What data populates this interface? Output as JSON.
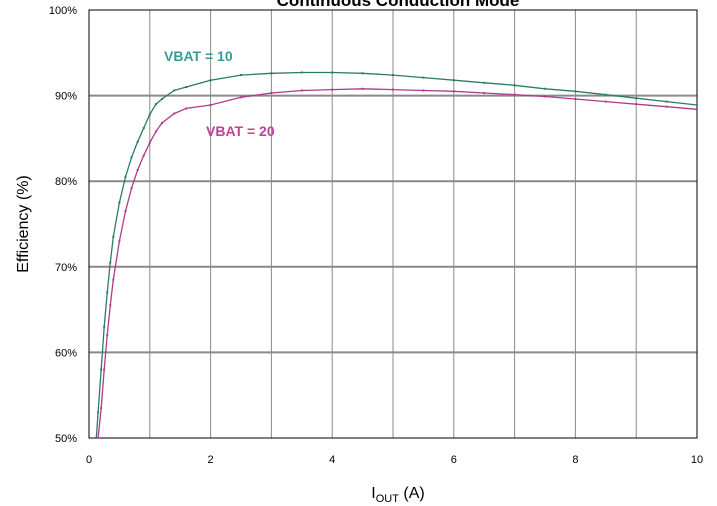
{
  "chart_data": {
    "type": "line",
    "title": "Continuous Conduction Mode",
    "xlabel_main": "I",
    "xlabel_sub": "OUT",
    "xlabel_unit": " (A)",
    "ylabel": "Efficiency (%)",
    "xlim": [
      0,
      10
    ],
    "ylim": [
      50,
      100
    ],
    "x_ticks": [
      0,
      2,
      4,
      6,
      8,
      10
    ],
    "x_tick_labels": [
      "0",
      "2",
      "4",
      "6",
      "8",
      "10"
    ],
    "y_ticks": [
      50,
      60,
      70,
      80,
      90,
      100
    ],
    "y_tick_labels": [
      "50%",
      "60%",
      "70%",
      "80%",
      "90%",
      "100%"
    ],
    "grid": true,
    "legend": "inline labels",
    "series": [
      {
        "name": "VBAT = 10",
        "color": "#2d7a6a",
        "label_color": "#3a9a9a",
        "x": [
          0.12,
          0.15,
          0.2,
          0.25,
          0.3,
          0.35,
          0.4,
          0.5,
          0.6,
          0.7,
          0.8,
          0.9,
          1.0,
          1.1,
          1.2,
          1.4,
          1.6,
          2.0,
          2.5,
          3.0,
          3.5,
          4.0,
          4.5,
          5.0,
          5.5,
          6.0,
          6.5,
          7.0,
          7.5,
          8.0,
          8.5,
          9.0,
          9.5,
          10.0
        ],
        "y": [
          50.0,
          53.0,
          58.0,
          63.0,
          67.0,
          70.5,
          73.5,
          77.5,
          80.5,
          82.8,
          84.6,
          86.2,
          87.8,
          89.0,
          89.6,
          90.6,
          91.0,
          91.8,
          92.4,
          92.6,
          92.7,
          92.7,
          92.6,
          92.4,
          92.1,
          91.8,
          91.5,
          91.2,
          90.8,
          90.5,
          90.1,
          89.7,
          89.3,
          88.9
        ]
      },
      {
        "name": "VBAT = 20",
        "color": "#b03a8c",
        "label_color": "#c0409a",
        "x": [
          0.15,
          0.2,
          0.25,
          0.3,
          0.35,
          0.4,
          0.5,
          0.6,
          0.7,
          0.8,
          0.9,
          1.0,
          1.1,
          1.2,
          1.4,
          1.6,
          2.0,
          2.5,
          3.0,
          3.5,
          4.0,
          4.5,
          5.0,
          5.5,
          6.0,
          6.5,
          7.0,
          7.5,
          8.0,
          8.5,
          9.0,
          9.5,
          10.0
        ],
        "y": [
          50.0,
          53.5,
          58.0,
          62.0,
          65.5,
          68.5,
          73.0,
          76.5,
          79.2,
          81.3,
          83.0,
          84.5,
          85.8,
          86.8,
          87.9,
          88.5,
          88.9,
          89.8,
          90.3,
          90.6,
          90.7,
          90.8,
          90.7,
          90.6,
          90.5,
          90.3,
          90.1,
          89.9,
          89.6,
          89.3,
          89.0,
          88.7,
          88.4
        ]
      }
    ]
  }
}
